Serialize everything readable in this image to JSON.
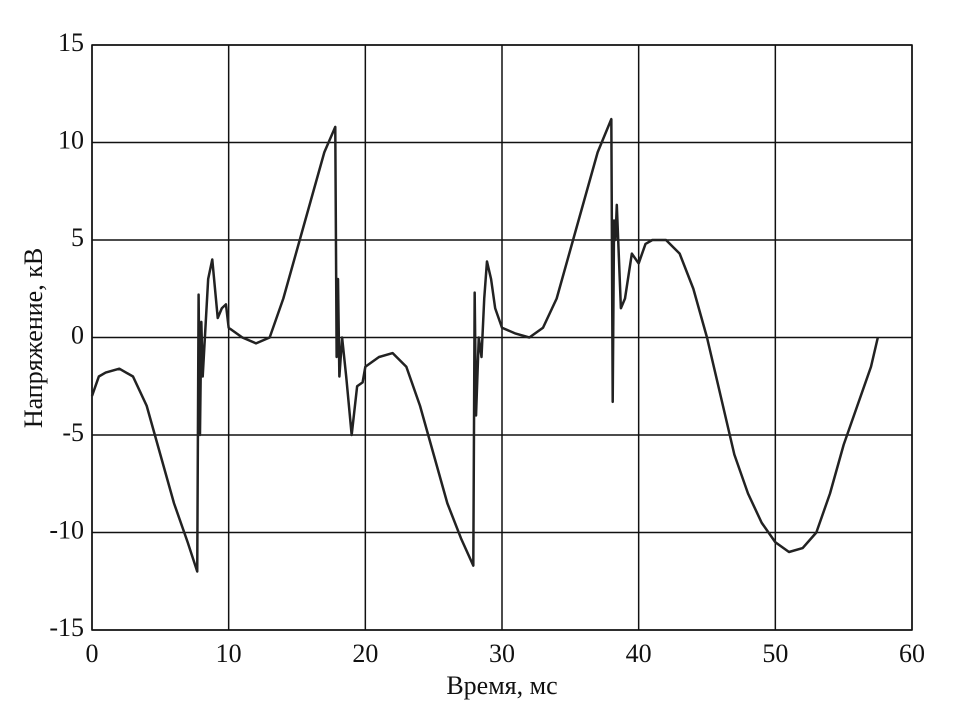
{
  "chart_data": {
    "type": "line",
    "x_label": "Время, мс",
    "y_label": "Напряжение, кВ",
    "x": [
      0,
      0.5,
      1,
      2,
      3,
      4,
      5,
      6,
      7,
      7.7,
      7.8,
      7.9,
      8,
      8.1,
      8.3,
      8.5,
      8.8,
      9.2,
      9.5,
      9.8,
      10,
      11,
      12,
      13,
      14,
      15,
      16,
      17,
      17.8,
      17.9,
      18,
      18.1,
      18.3,
      18.6,
      19,
      19.4,
      19.8,
      20,
      21,
      22,
      23,
      24,
      25,
      26,
      27,
      27.9,
      28,
      28.1,
      28.3,
      28.5,
      28.7,
      28.9,
      29.2,
      29.5,
      30,
      31,
      32,
      33,
      34,
      35,
      36,
      37,
      38,
      38.1,
      38.2,
      38.3,
      38.4,
      38.7,
      39,
      39.5,
      40,
      40.5,
      41,
      42,
      43,
      44,
      45,
      46,
      47,
      48,
      49,
      50,
      51,
      52,
      53,
      54,
      55,
      56,
      57,
      57.5
    ],
    "series": [
      {
        "color": "#222222",
        "values": [
          -3,
          -2,
          -1.8,
          -1.6,
          -2,
          -3.5,
          -6,
          -8.5,
          -10.5,
          -12,
          2.2,
          -5,
          0.8,
          -2,
          0.5,
          3,
          4,
          1,
          1.5,
          1.7,
          0.5,
          0,
          -0.3,
          0,
          2,
          4.5,
          7,
          9.5,
          10.8,
          -1,
          3,
          -2,
          0,
          -2,
          -5,
          -2.5,
          -2.3,
          -1.5,
          -1,
          -0.8,
          -1.5,
          -3.5,
          -6,
          -8.5,
          -10.3,
          -11.7,
          2.3,
          -4,
          0,
          -1,
          2,
          3.9,
          3,
          1.5,
          0.5,
          0.2,
          0,
          0.5,
          2,
          4.5,
          7,
          9.5,
          11.2,
          -3.3,
          6,
          5,
          6.8,
          1.5,
          2,
          4.3,
          3.8,
          4.8,
          5,
          5,
          4.3,
          2.5,
          0,
          -3,
          -6,
          -8,
          -9.5,
          -10.5,
          -11,
          -10.8,
          -10,
          -8,
          -5.5,
          -3.5,
          -1.5,
          0
        ]
      }
    ],
    "xlim": [
      0,
      60
    ],
    "xticks": [
      0,
      10,
      20,
      30,
      40,
      50,
      60
    ],
    "ylim": [
      -15,
      15
    ],
    "yticks": [
      -15,
      -10,
      -5,
      0,
      5,
      10,
      15
    ],
    "grid": true
  }
}
